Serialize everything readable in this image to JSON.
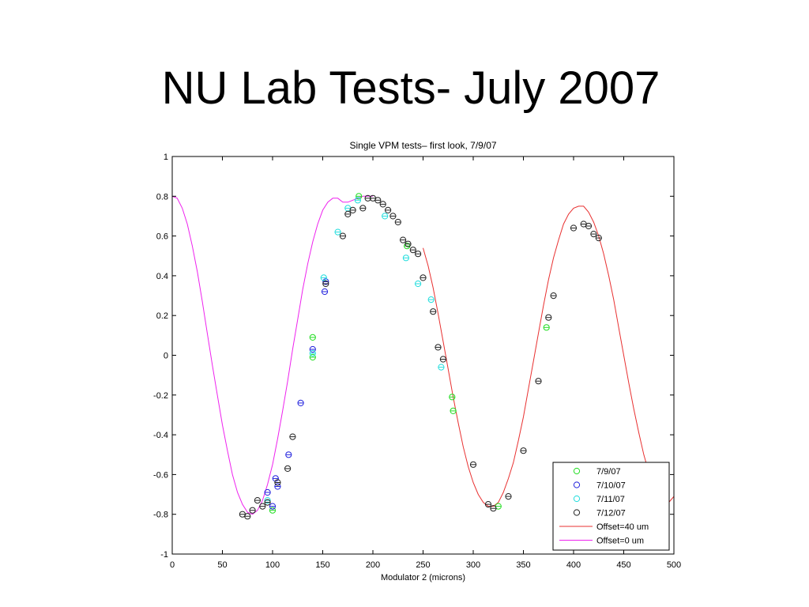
{
  "slide": {
    "title": "NU Lab Tests- July 2007"
  },
  "chart_data": {
    "type": "scatter",
    "title": "Single VPM tests– first look, 7/9/07",
    "xlabel": "Modulator 2 (microns)",
    "ylabel": "",
    "xlim": [
      0,
      500
    ],
    "ylim": [
      -1,
      1
    ],
    "xticks": [
      0,
      50,
      100,
      150,
      200,
      250,
      300,
      350,
      400,
      450,
      500
    ],
    "yticks": [
      -1,
      -0.8,
      -0.6,
      -0.4,
      -0.2,
      0,
      0.2,
      0.4,
      0.6,
      0.8,
      1
    ],
    "grid": false,
    "legend": "bottom-right",
    "series": [
      {
        "name": "7/9/07",
        "kind": "points",
        "color": "#22dd22",
        "x": [
          100,
          140,
          140,
          186,
          234,
          279,
          280,
          325,
          373
        ],
        "y": [
          -0.78,
          0.09,
          -0.01,
          0.8,
          0.55,
          -0.21,
          -0.28,
          -0.76,
          0.14
        ]
      },
      {
        "name": "7/10/07",
        "kind": "points",
        "color": "#2222dd",
        "x": [
          95,
          100,
          103,
          105,
          116,
          128,
          140,
          152,
          153
        ],
        "y": [
          -0.69,
          -0.76,
          -0.62,
          -0.66,
          -0.5,
          -0.24,
          0.03,
          0.32,
          0.37
        ]
      },
      {
        "name": "7/11/07",
        "kind": "points",
        "color": "#22dddd",
        "x": [
          95,
          140,
          151,
          165,
          175,
          185,
          212,
          233,
          245,
          258,
          268
        ],
        "y": [
          -0.73,
          0.01,
          0.39,
          0.62,
          0.74,
          0.78,
          0.7,
          0.49,
          0.36,
          0.28,
          -0.06
        ]
      },
      {
        "name": "7/12/07",
        "kind": "points",
        "color": "#222222",
        "x": [
          70,
          75,
          80,
          85,
          90,
          95,
          105,
          115,
          120,
          153,
          170,
          175,
          180,
          190,
          195,
          200,
          205,
          210,
          215,
          220,
          225,
          230,
          235,
          240,
          245,
          250,
          260,
          265,
          270,
          300,
          315,
          320,
          335,
          350,
          365,
          375,
          380,
          400,
          410,
          415,
          420,
          425
        ],
        "y": [
          -0.8,
          -0.81,
          -0.78,
          -0.73,
          -0.76,
          -0.74,
          -0.64,
          -0.57,
          -0.41,
          0.36,
          0.6,
          0.71,
          0.73,
          0.74,
          0.79,
          0.79,
          0.78,
          0.76,
          0.73,
          0.7,
          0.67,
          0.58,
          0.56,
          0.53,
          0.51,
          0.39,
          0.22,
          0.04,
          -0.02,
          -0.55,
          -0.75,
          -0.77,
          -0.71,
          -0.48,
          -0.13,
          0.19,
          0.3,
          0.64,
          0.66,
          0.65,
          0.61,
          0.59
        ]
      },
      {
        "name": "Offset=40 um",
        "kind": "line",
        "color": "#e83030",
        "x": [
          250,
          255,
          260,
          265,
          270,
          275,
          280,
          285,
          290,
          295,
          300,
          305,
          310,
          315,
          320,
          325,
          330,
          335,
          340,
          345,
          350,
          355,
          360,
          365,
          370,
          375,
          380,
          385,
          390,
          395,
          400,
          405,
          410,
          415,
          420,
          425,
          430,
          435,
          440,
          445,
          450,
          455,
          460,
          465,
          470,
          475,
          480,
          485,
          490,
          495,
          500
        ],
        "y": [
          0.54,
          0.45,
          0.34,
          0.21,
          0.07,
          -0.07,
          -0.21,
          -0.34,
          -0.46,
          -0.56,
          -0.64,
          -0.7,
          -0.74,
          -0.76,
          -0.76,
          -0.74,
          -0.69,
          -0.62,
          -0.54,
          -0.43,
          -0.31,
          -0.17,
          -0.03,
          0.11,
          0.25,
          0.38,
          0.49,
          0.58,
          0.66,
          0.71,
          0.74,
          0.75,
          0.75,
          0.72,
          0.67,
          0.6,
          0.51,
          0.4,
          0.28,
          0.14,
          0.0,
          -0.14,
          -0.27,
          -0.39,
          -0.5,
          -0.59,
          -0.66,
          -0.71,
          -0.74,
          -0.74,
          -0.71
        ]
      },
      {
        "name": "Offset=0 um",
        "kind": "line",
        "color": "#ee22ee",
        "x": [
          0,
          5,
          10,
          15,
          20,
          25,
          30,
          35,
          40,
          45,
          50,
          55,
          60,
          65,
          70,
          75,
          80,
          85,
          90,
          95,
          100,
          105,
          110,
          115,
          120,
          125,
          130,
          135,
          140,
          145,
          150,
          155,
          160,
          165,
          170,
          175,
          180,
          185,
          190,
          195,
          200
        ],
        "y": [
          0.8,
          0.79,
          0.74,
          0.66,
          0.55,
          0.42,
          0.27,
          0.11,
          -0.05,
          -0.2,
          -0.35,
          -0.48,
          -0.6,
          -0.69,
          -0.75,
          -0.79,
          -0.8,
          -0.78,
          -0.73,
          -0.65,
          -0.55,
          -0.42,
          -0.28,
          -0.13,
          0.03,
          0.18,
          0.33,
          0.46,
          0.57,
          0.66,
          0.73,
          0.77,
          0.79,
          0.79,
          0.77,
          0.77,
          0.78,
          0.79,
          0.8,
          0.8,
          0.8
        ]
      }
    ]
  }
}
